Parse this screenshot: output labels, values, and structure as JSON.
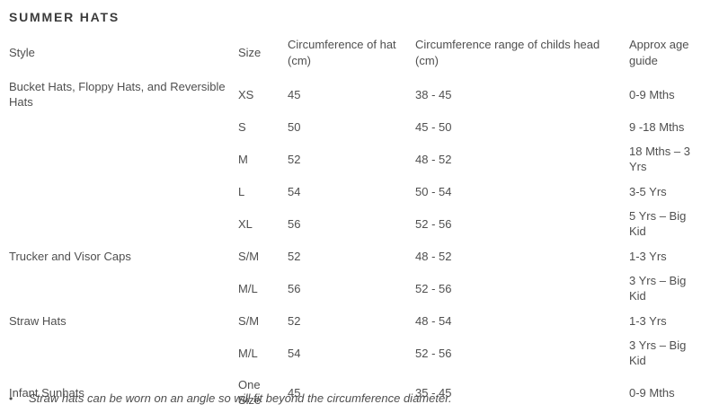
{
  "title": "SUMMER HATS",
  "table": {
    "headers": [
      "Style",
      "Size",
      "Circumference of hat (cm)",
      "Circumference range of childs head (cm)",
      "Approx age guide"
    ],
    "rows": [
      {
        "style": "Bucket Hats, Floppy Hats, and Reversible Hats",
        "size": "XS",
        "hat_cm": "45",
        "head_cm": "38 - 45",
        "age": "0-9 Mths"
      },
      {
        "style": "",
        "size": "S",
        "hat_cm": "50",
        "head_cm": "45 - 50",
        "age": "9 -18 Mths"
      },
      {
        "style": "",
        "size": "M",
        "hat_cm": "52",
        "head_cm": "48 - 52",
        "age": "18 Mths – 3 Yrs"
      },
      {
        "style": "",
        "size": "L",
        "hat_cm": "54",
        "head_cm": "50 - 54",
        "age": "3-5 Yrs"
      },
      {
        "style": "",
        "size": "XL",
        "hat_cm": "56",
        "head_cm": "52 - 56",
        "age": "5 Yrs – Big Kid"
      },
      {
        "style": "Trucker and Visor Caps",
        "size": "S/M",
        "hat_cm": "52",
        "head_cm": "48 - 52",
        "age": "1-3 Yrs"
      },
      {
        "style": "",
        "size": "M/L",
        "hat_cm": "56",
        "head_cm": "52 - 56",
        "age": "3 Yrs – Big Kid"
      },
      {
        "style": "Straw Hats",
        "size": "S/M",
        "hat_cm": "52",
        "head_cm": "48 - 54",
        "age": "1-3 Yrs"
      },
      {
        "style": "",
        "size": "M/L",
        "hat_cm": "54",
        "head_cm": "52 - 56",
        "age": "3 Yrs – Big Kid"
      },
      {
        "style": "Infant Sunhats",
        "size": "One Size",
        "hat_cm": "45",
        "head_cm": "35 - 45",
        "age": "0-9 Mths"
      }
    ]
  },
  "note": {
    "bullet": "•",
    "text": "Straw hats can be worn on an angle so will fit beyond the circumference diameter."
  },
  "colors": {
    "text": "#4f4f4f",
    "title": "#3b3b3b",
    "divider": "#ebebeb",
    "background": "#ffffff"
  }
}
